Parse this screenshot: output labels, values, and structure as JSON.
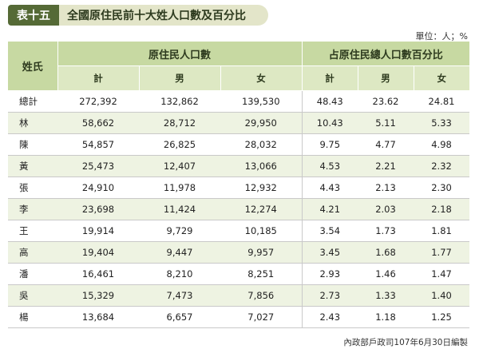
{
  "header": {
    "badge": "表十五",
    "title": "全國原住民前十大姓人口數及百分比"
  },
  "unit_note": "單位：人；%",
  "table": {
    "surname_header": "姓氏",
    "group_population": "原住民人口數",
    "group_percent": "占原住民總人口數百分比",
    "sub_headers": [
      "計",
      "男",
      "女",
      "計",
      "男",
      "女"
    ],
    "rows": [
      [
        "總計",
        "272,392",
        "132,862",
        "139,530",
        "48.43",
        "23.62",
        "24.81"
      ],
      [
        "林",
        "58,662",
        "28,712",
        "29,950",
        "10.43",
        "5.11",
        "5.33"
      ],
      [
        "陳",
        "54,857",
        "26,825",
        "28,032",
        "9.75",
        "4.77",
        "4.98"
      ],
      [
        "黃",
        "25,473",
        "12,407",
        "13,066",
        "4.53",
        "2.21",
        "2.32"
      ],
      [
        "張",
        "24,910",
        "11,978",
        "12,932",
        "4.43",
        "2.13",
        "2.30"
      ],
      [
        "李",
        "23,698",
        "11,424",
        "12,274",
        "4.21",
        "2.03",
        "2.18"
      ],
      [
        "王",
        "19,914",
        "9,729",
        "10,185",
        "3.54",
        "1.73",
        "1.81"
      ],
      [
        "高",
        "19,404",
        "9,447",
        "9,957",
        "3.45",
        "1.68",
        "1.77"
      ],
      [
        "潘",
        "16,461",
        "8,210",
        "8,251",
        "2.93",
        "1.46",
        "1.47"
      ],
      [
        "吳",
        "15,329",
        "7,473",
        "7,856",
        "2.73",
        "1.33",
        "1.40"
      ],
      [
        "楊",
        "13,684",
        "6,657",
        "7,027",
        "2.43",
        "1.18",
        "1.25"
      ]
    ]
  },
  "footer": "內政部戶政司107年6月30日編製",
  "colors": {
    "badge": "#556a36",
    "title_bg": "#e3e5c9",
    "header_bg": "#c7d9a2",
    "subheader_bg": "#dde8c3",
    "row_alt_bg": "#eef3e2"
  }
}
